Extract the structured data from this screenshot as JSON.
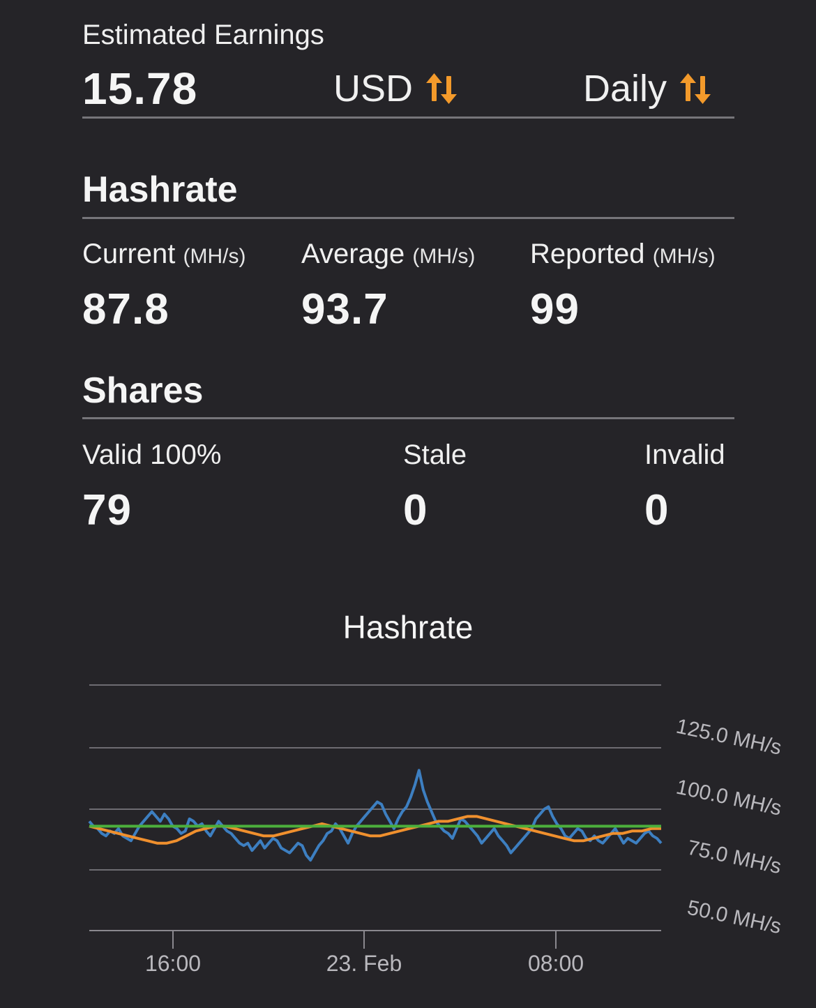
{
  "earnings": {
    "label": "Estimated Earnings",
    "value": "15.78",
    "currency": "USD",
    "period": "Daily"
  },
  "hashrate": {
    "title": "Hashrate",
    "current": {
      "label": "Current",
      "unit": "(MH/s)",
      "value": "87.8"
    },
    "average": {
      "label": "Average",
      "unit": "(MH/s)",
      "value": "93.7"
    },
    "reported": {
      "label": "Reported",
      "unit": "(MH/s)",
      "value": "99"
    }
  },
  "shares": {
    "title": "Shares",
    "valid": {
      "label": "Valid 100%",
      "value": "79"
    },
    "stale": {
      "label": "Stale",
      "value": "0"
    },
    "invalid": {
      "label": "Invalid",
      "value": "0"
    }
  },
  "colors": {
    "background": "#252428",
    "accent": "#f39a2b",
    "current_series": "#3d7fc1",
    "average_series": "#f0902e",
    "reported_series": "#4caf3c"
  },
  "icons": {
    "sort": "sort-arrows-icon"
  },
  "chart_data": {
    "type": "line",
    "title": "Hashrate",
    "y_tick_labels": [
      "125.0 MH/s",
      "100.0 MH/s",
      "75.0 MH/s",
      "50.0 MH/s"
    ],
    "x_tick_labels": [
      "16:00",
      "23. Feb",
      "08:00"
    ],
    "ylim": [
      50,
      125
    ],
    "grid": true,
    "series": [
      {
        "name": "",
        "values": [
          93,
          92,
          91,
          90,
          89,
          88,
          87,
          86,
          86,
          87,
          89,
          91,
          92,
          93,
          93,
          92,
          91,
          90,
          89,
          89,
          90,
          91,
          92,
          93,
          94,
          93,
          92,
          91,
          90,
          89,
          89,
          90,
          91,
          92,
          93,
          94,
          95,
          95,
          96,
          97,
          97,
          96,
          95,
          94,
          93,
          92,
          91,
          90,
          89,
          88,
          87,
          87,
          88,
          89,
          90,
          90,
          91,
          91,
          92,
          92
        ]
      },
      {
        "name": "",
        "values": [
          93,
          92,
          91,
          90,
          90,
          89,
          89,
          88,
          88,
          89,
          90,
          91,
          92,
          93,
          94,
          95,
          95,
          94,
          93,
          92,
          92,
          92,
          93,
          93,
          92,
          91,
          90,
          89,
          88,
          88,
          87,
          87,
          86,
          86,
          85,
          84,
          83,
          83,
          84,
          85,
          87,
          89,
          91,
          93,
          94,
          94,
          93,
          92,
          91,
          91,
          92,
          93,
          93,
          92,
          91,
          90,
          89,
          89,
          88,
          88
        ],
        "raw": [
          95,
          93,
          92,
          90,
          89,
          91,
          90,
          92,
          89,
          88,
          87,
          90,
          93,
          95,
          97,
          99,
          97,
          95,
          98,
          96,
          93,
          92,
          90,
          91,
          96,
          95,
          93,
          94,
          91,
          89,
          92,
          95,
          93,
          91,
          90,
          88,
          86,
          85,
          86,
          83,
          85,
          87,
          84,
          86,
          88,
          87,
          84,
          83,
          82,
          84,
          86,
          85,
          81,
          79,
          82,
          85,
          87,
          90,
          91,
          94,
          92,
          89,
          86,
          90,
          93,
          95,
          97,
          99,
          101,
          103,
          102,
          98,
          95,
          92,
          96,
          99,
          101,
          105,
          110,
          116,
          108,
          103,
          99,
          95,
          93,
          91,
          90,
          88,
          92,
          96,
          95,
          93,
          91,
          89,
          86,
          88,
          90,
          92,
          89,
          87,
          85,
          82,
          84,
          86,
          88,
          90,
          92,
          96,
          98,
          100,
          101,
          97,
          94,
          92,
          89,
          88,
          90,
          92,
          91,
          88,
          87,
          89,
          87,
          86,
          88,
          90,
          92,
          89,
          86,
          88,
          87,
          86,
          88,
          90,
          91,
          89,
          88,
          86
        ]
      },
      {
        "name": "",
        "values": [
          93,
          93,
          93,
          93,
          93,
          93,
          93,
          93,
          93,
          93,
          93,
          93,
          93,
          93,
          93,
          93,
          93,
          93,
          93,
          93,
          93,
          93,
          93,
          93,
          93,
          93,
          93,
          93,
          93,
          93,
          93,
          93,
          93,
          93,
          93,
          93,
          93,
          93,
          93,
          93,
          93,
          93,
          93,
          93,
          93,
          93,
          93,
          93,
          93,
          93,
          93,
          93,
          93,
          93,
          93,
          93,
          93,
          93,
          93,
          93
        ]
      }
    ]
  }
}
